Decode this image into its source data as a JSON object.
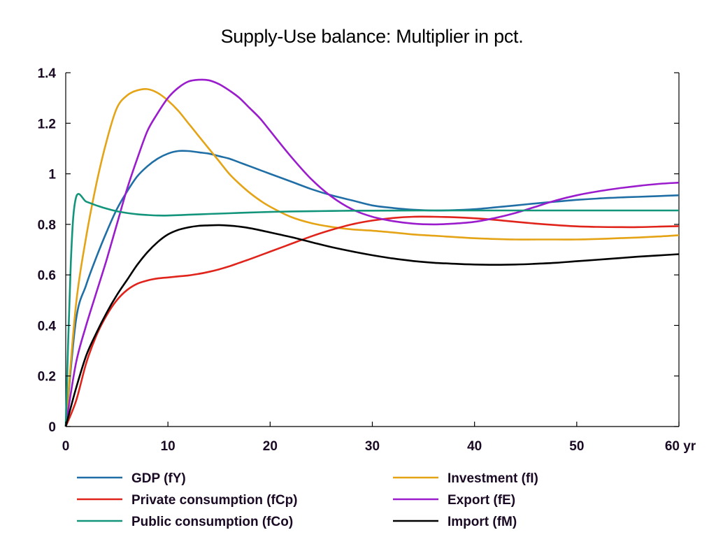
{
  "chart_data": {
    "type": "line",
    "title": "Supply-Use balance: Multiplier in pct.",
    "xlabel": "",
    "ylabel": "",
    "xlim": [
      0,
      60
    ],
    "ylim": [
      0,
      1.4
    ],
    "x_ticks": [
      0,
      10,
      20,
      30,
      40,
      50,
      60
    ],
    "x_tick_labels": [
      "0",
      "10",
      "20",
      "30",
      "40",
      "50",
      "60 yr"
    ],
    "y_ticks": [
      0,
      0.2,
      0.4,
      0.6,
      0.8,
      1,
      1.2,
      1.4
    ],
    "y_tick_labels": [
      "0",
      "0.2",
      "0.4",
      "0.6",
      "0.8",
      "1",
      "1.2",
      "1.4"
    ],
    "grid": false,
    "legend_position": "bottom",
    "series": [
      {
        "name": "GDP (fY)",
        "color": "#1f6fa6",
        "x": [
          0,
          1,
          2,
          3,
          4,
          5,
          6,
          7,
          8,
          9,
          10,
          11,
          12,
          13,
          14,
          15,
          16,
          17,
          18,
          19,
          20,
          22,
          24,
          26,
          28,
          30,
          32,
          34,
          36,
          38,
          40,
          42,
          44,
          46,
          48,
          50,
          52,
          54,
          56,
          58,
          60
        ],
        "y": [
          0,
          0.42,
          0.56,
          0.67,
          0.77,
          0.86,
          0.93,
          0.99,
          1.03,
          1.06,
          1.08,
          1.09,
          1.09,
          1.085,
          1.08,
          1.07,
          1.06,
          1.045,
          1.03,
          1.015,
          1.0,
          0.97,
          0.94,
          0.915,
          0.895,
          0.875,
          0.865,
          0.858,
          0.855,
          0.856,
          0.86,
          0.867,
          0.875,
          0.883,
          0.89,
          0.897,
          0.902,
          0.906,
          0.909,
          0.912,
          0.915
        ]
      },
      {
        "name": "Investment (fI)",
        "color": "#e5a316",
        "x": [
          0,
          1,
          2,
          3,
          4,
          5,
          6,
          7,
          8,
          9,
          10,
          11,
          12,
          13,
          14,
          15,
          16,
          17,
          18,
          19,
          20,
          22,
          24,
          26,
          28,
          30,
          32,
          34,
          36,
          38,
          40,
          42,
          44,
          46,
          48,
          50,
          52,
          54,
          56,
          58,
          60
        ],
        "y": [
          0,
          0.48,
          0.75,
          0.96,
          1.13,
          1.26,
          1.31,
          1.33,
          1.335,
          1.32,
          1.29,
          1.25,
          1.2,
          1.15,
          1.1,
          1.05,
          1.0,
          0.96,
          0.925,
          0.895,
          0.87,
          0.83,
          0.805,
          0.79,
          0.78,
          0.775,
          0.768,
          0.76,
          0.755,
          0.75,
          0.745,
          0.742,
          0.74,
          0.74,
          0.74,
          0.74,
          0.742,
          0.745,
          0.748,
          0.752,
          0.757
        ]
      },
      {
        "name": "Private consumption (fCp)",
        "color": "#e0241b",
        "x": [
          0,
          1,
          2,
          3,
          4,
          5,
          6,
          7,
          8,
          9,
          10,
          11,
          12,
          13,
          14,
          15,
          16,
          17,
          18,
          19,
          20,
          22,
          24,
          26,
          28,
          30,
          32,
          34,
          36,
          38,
          40,
          42,
          44,
          46,
          48,
          50,
          52,
          54,
          56,
          58,
          60
        ],
        "y": [
          0,
          0.1,
          0.25,
          0.36,
          0.44,
          0.5,
          0.54,
          0.565,
          0.578,
          0.586,
          0.59,
          0.594,
          0.598,
          0.604,
          0.612,
          0.622,
          0.634,
          0.648,
          0.662,
          0.677,
          0.692,
          0.722,
          0.752,
          0.778,
          0.8,
          0.815,
          0.825,
          0.83,
          0.83,
          0.828,
          0.824,
          0.818,
          0.81,
          0.803,
          0.797,
          0.792,
          0.79,
          0.789,
          0.789,
          0.791,
          0.793
        ]
      },
      {
        "name": "Export (fE)",
        "color": "#9a1ccc",
        "x": [
          0,
          1,
          2,
          3,
          4,
          5,
          6,
          7,
          8,
          9,
          10,
          11,
          12,
          13,
          14,
          15,
          16,
          17,
          18,
          19,
          20,
          22,
          24,
          26,
          28,
          30,
          32,
          34,
          36,
          38,
          40,
          42,
          44,
          46,
          48,
          50,
          52,
          54,
          56,
          58,
          60
        ],
        "y": [
          0,
          0.25,
          0.4,
          0.53,
          0.66,
          0.8,
          0.94,
          1.06,
          1.17,
          1.24,
          1.3,
          1.34,
          1.365,
          1.372,
          1.37,
          1.355,
          1.33,
          1.3,
          1.26,
          1.22,
          1.17,
          1.07,
          0.98,
          0.91,
          0.86,
          0.83,
          0.813,
          0.803,
          0.8,
          0.803,
          0.81,
          0.825,
          0.845,
          0.87,
          0.895,
          0.915,
          0.93,
          0.942,
          0.952,
          0.96,
          0.965
        ]
      },
      {
        "name": "Public consumption (fCo)",
        "color": "#13957c",
        "x": [
          0,
          0.5,
          1,
          2,
          3,
          4,
          5,
          6,
          7,
          8,
          9,
          10,
          12,
          14,
          16,
          18,
          20,
          22,
          24,
          26,
          28,
          30,
          35,
          40,
          45,
          50,
          55,
          60
        ],
        "y": [
          0,
          0.65,
          0.905,
          0.89,
          0.875,
          0.862,
          0.852,
          0.845,
          0.84,
          0.837,
          0.835,
          0.835,
          0.838,
          0.841,
          0.844,
          0.847,
          0.849,
          0.851,
          0.852,
          0.853,
          0.854,
          0.854,
          0.855,
          0.855,
          0.855,
          0.855,
          0.855,
          0.855
        ]
      },
      {
        "name": "Import (fM)",
        "color": "#000000",
        "x": [
          0,
          1,
          2,
          3,
          4,
          5,
          6,
          7,
          8,
          9,
          10,
          11,
          12,
          13,
          14,
          15,
          16,
          17,
          18,
          19,
          20,
          22,
          24,
          26,
          28,
          30,
          32,
          34,
          36,
          38,
          40,
          42,
          44,
          46,
          48,
          50,
          52,
          54,
          56,
          58,
          60
        ],
        "y": [
          0,
          0.15,
          0.28,
          0.37,
          0.45,
          0.52,
          0.58,
          0.64,
          0.69,
          0.73,
          0.76,
          0.778,
          0.788,
          0.794,
          0.796,
          0.797,
          0.795,
          0.791,
          0.785,
          0.777,
          0.768,
          0.75,
          0.73,
          0.71,
          0.693,
          0.678,
          0.665,
          0.655,
          0.648,
          0.644,
          0.641,
          0.64,
          0.641,
          0.644,
          0.648,
          0.654,
          0.66,
          0.666,
          0.672,
          0.677,
          0.682
        ]
      }
    ],
    "legend_layout": [
      [
        "GDP (fY)",
        "Investment (fI)"
      ],
      [
        "Private consumption (fCp)",
        "Export (fE)"
      ],
      [
        "Public consumption (fCo)",
        "Import (fM)"
      ]
    ]
  }
}
